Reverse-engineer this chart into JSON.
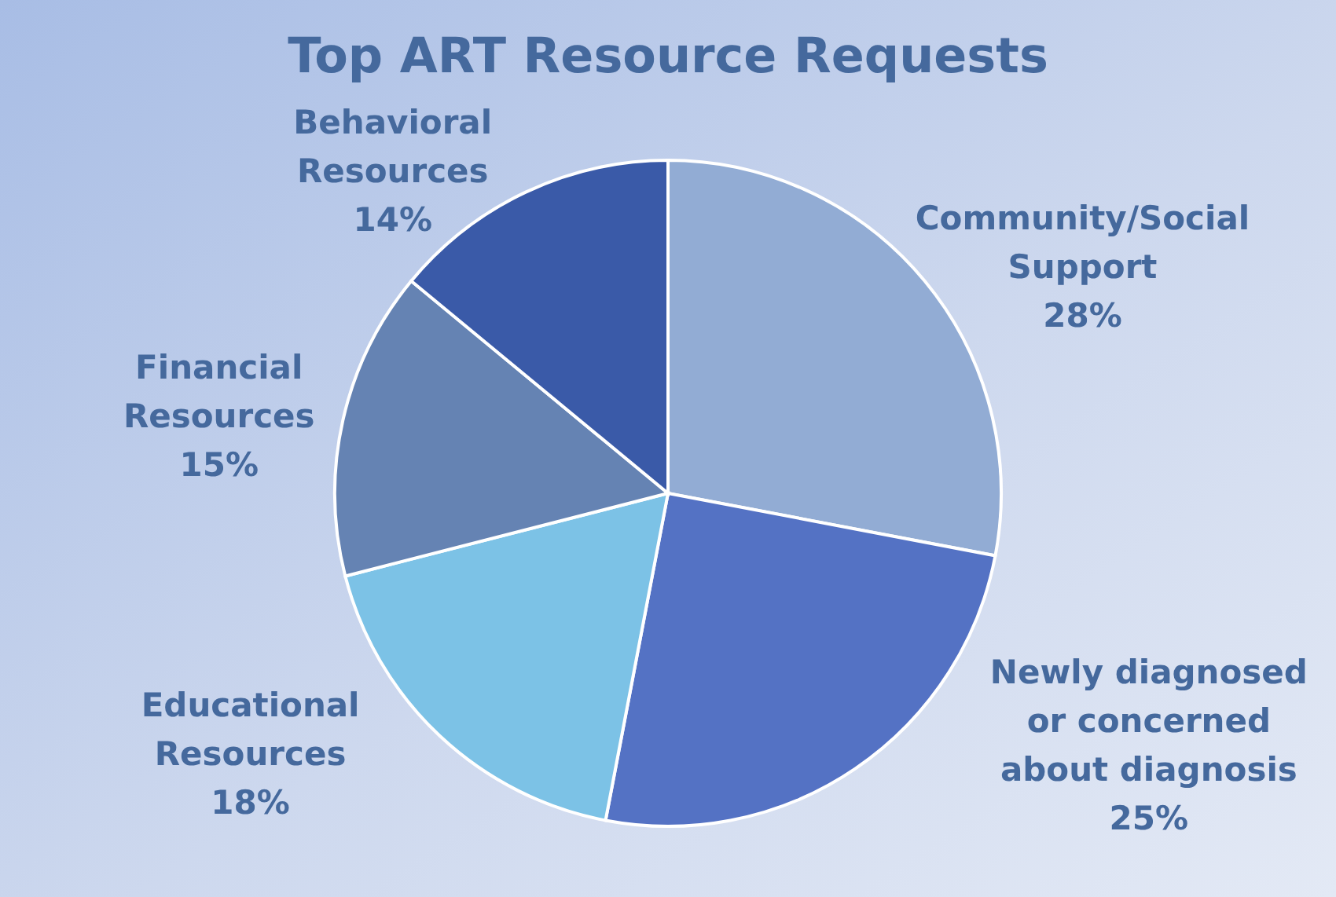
{
  "chart_data": {
    "type": "pie",
    "title": "Top ART Resource Requests",
    "categories": [
      "Community/Social Support",
      "Newly diagnosed or concerned about diagnosis",
      "Educational Resources",
      "Financial Resources",
      "Behavioral Resources"
    ],
    "values": [
      28,
      25,
      18,
      15,
      14
    ],
    "colors": [
      "#92acd4",
      "#5472c4",
      "#7cc2e6",
      "#6583b3",
      "#3a5aa8"
    ],
    "value_labels": [
      "28%",
      "25%",
      "18%",
      "15%",
      "14%"
    ]
  }
}
